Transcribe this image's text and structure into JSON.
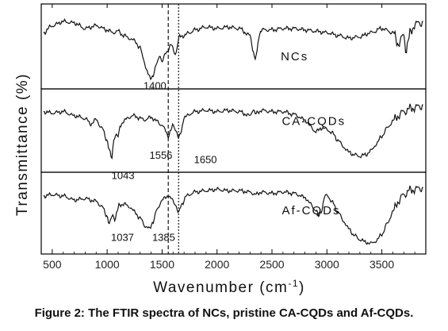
{
  "caption": "Figure 2: The FTIR spectra of NCs, pristine CA-CQDs and Af-CQDs.",
  "chart_data": {
    "type": "line",
    "title": "",
    "xlabel": "Wavenumber (cm",
    "xlabel_superscript": "-1",
    "xlabel_suffix": ")",
    "ylabel": "Transmittance (%)",
    "xlim": [
      400,
      3900
    ],
    "xticks": [
      500,
      1000,
      1500,
      2000,
      2500,
      3000,
      3500
    ],
    "xtick_labels": [
      "500",
      "1000",
      "1500",
      "2000",
      "2500",
      "3000",
      "3500"
    ],
    "stacked_panels": 3,
    "grid": false,
    "reference_lines": [
      {
        "x": 1556,
        "style": "dashed"
      },
      {
        "x": 1650,
        "style": "dotted"
      }
    ],
    "series": [
      {
        "name": "NCs",
        "panel": 0,
        "x": [
          420,
          500,
          600,
          700,
          800,
          900,
          1000,
          1050,
          1100,
          1150,
          1200,
          1250,
          1300,
          1330,
          1360,
          1380,
          1400,
          1420,
          1450,
          1480,
          1500,
          1540,
          1580,
          1620,
          1660,
          1700,
          1750,
          1800,
          1900,
          2000,
          2100,
          2200,
          2300,
          2330,
          2345,
          2360,
          2380,
          2400,
          2500,
          2600,
          2700,
          2800,
          2900,
          3000,
          3100,
          3200,
          3300,
          3400,
          3500,
          3600,
          3650,
          3700,
          3720,
          3740,
          3760,
          3800,
          3850,
          3880
        ],
        "y": [
          0.3,
          0.2,
          0.14,
          0.16,
          0.24,
          0.2,
          0.26,
          0.3,
          0.28,
          0.34,
          0.38,
          0.42,
          0.52,
          0.68,
          0.84,
          0.94,
          0.96,
          0.9,
          0.76,
          0.62,
          0.72,
          0.58,
          0.48,
          0.6,
          0.36,
          0.34,
          0.3,
          0.26,
          0.22,
          0.24,
          0.22,
          0.24,
          0.34,
          0.56,
          0.7,
          0.62,
          0.36,
          0.26,
          0.26,
          0.24,
          0.24,
          0.26,
          0.28,
          0.3,
          0.34,
          0.38,
          0.36,
          0.3,
          0.24,
          0.3,
          0.46,
          0.34,
          0.56,
          0.42,
          0.3,
          0.18,
          0.16,
          0.14
        ]
      },
      {
        "name": "CA-CQDs",
        "panel": 1,
        "x": [
          420,
          500,
          600,
          700,
          800,
          850,
          900,
          950,
          1000,
          1020,
          1043,
          1060,
          1080,
          1100,
          1120,
          1150,
          1200,
          1250,
          1300,
          1350,
          1400,
          1450,
          1500,
          1530,
          1556,
          1580,
          1600,
          1630,
          1650,
          1670,
          1700,
          1800,
          1900,
          2000,
          2100,
          2200,
          2300,
          2330,
          2350,
          2380,
          2400,
          2500,
          2600,
          2700,
          2800,
          2850,
          2900,
          2950,
          3000,
          3050,
          3100,
          3150,
          3200,
          3250,
          3300,
          3350,
          3400,
          3450,
          3500,
          3550,
          3600,
          3650,
          3700,
          3750,
          3800,
          3850,
          3880
        ],
        "y": [
          0.22,
          0.24,
          0.22,
          0.28,
          0.32,
          0.4,
          0.34,
          0.46,
          0.64,
          0.8,
          0.92,
          0.62,
          0.56,
          0.6,
          0.42,
          0.36,
          0.3,
          0.28,
          0.32,
          0.34,
          0.3,
          0.36,
          0.42,
          0.5,
          0.58,
          0.5,
          0.42,
          0.5,
          0.62,
          0.54,
          0.3,
          0.22,
          0.2,
          0.22,
          0.2,
          0.22,
          0.28,
          0.18,
          0.26,
          0.22,
          0.2,
          0.22,
          0.22,
          0.26,
          0.34,
          0.44,
          0.52,
          0.46,
          0.48,
          0.54,
          0.64,
          0.74,
          0.82,
          0.86,
          0.88,
          0.86,
          0.8,
          0.7,
          0.58,
          0.46,
          0.36,
          0.28,
          0.22,
          0.18,
          0.16,
          0.14,
          0.12
        ]
      },
      {
        "name": "Af-CQDs",
        "panel": 2,
        "x": [
          420,
          500,
          600,
          700,
          800,
          900,
          950,
          1000,
          1020,
          1037,
          1055,
          1070,
          1090,
          1110,
          1150,
          1200,
          1250,
          1300,
          1350,
          1385,
          1420,
          1450,
          1500,
          1540,
          1556,
          1580,
          1620,
          1650,
          1680,
          1720,
          1800,
          1900,
          2000,
          2100,
          2200,
          2300,
          2350,
          2400,
          2500,
          2600,
          2700,
          2800,
          2850,
          2900,
          2925,
          2950,
          2980,
          3000,
          3050,
          3100,
          3150,
          3200,
          3250,
          3300,
          3350,
          3400,
          3450,
          3500,
          3550,
          3600,
          3650,
          3700,
          3750,
          3800,
          3850,
          3880
        ],
        "y": [
          0.24,
          0.22,
          0.24,
          0.3,
          0.28,
          0.32,
          0.4,
          0.54,
          0.68,
          0.58,
          0.52,
          0.6,
          0.48,
          0.38,
          0.36,
          0.4,
          0.48,
          0.58,
          0.7,
          0.74,
          0.62,
          0.46,
          0.3,
          0.26,
          0.22,
          0.28,
          0.36,
          0.5,
          0.36,
          0.24,
          0.18,
          0.16,
          0.14,
          0.16,
          0.16,
          0.18,
          0.22,
          0.18,
          0.2,
          0.18,
          0.2,
          0.26,
          0.36,
          0.46,
          0.54,
          0.46,
          0.26,
          0.22,
          0.34,
          0.48,
          0.62,
          0.74,
          0.84,
          0.9,
          0.94,
          0.96,
          0.92,
          0.82,
          0.66,
          0.48,
          0.32,
          0.22,
          0.16,
          0.14,
          0.12,
          0.12
        ]
      }
    ],
    "series_labels": [
      {
        "text": "NCs",
        "panel": 0,
        "x": 2580,
        "y": 0.7
      },
      {
        "text": "CA-CQDs",
        "panel": 1,
        "x": 2590,
        "y": 0.42
      },
      {
        "text": "Af-CQDs",
        "panel": 2,
        "x": 2590,
        "y": 0.52
      }
    ],
    "peak_labels": [
      {
        "text": "1400",
        "panel": 0,
        "x": 1330,
        "y": 1.12
      },
      {
        "text": "1043",
        "panel": 1,
        "x": 1040,
        "y": 1.22
      },
      {
        "text": "1556",
        "panel": 1,
        "x": 1385,
        "y": 0.92
      },
      {
        "text": "1650",
        "panel": 1,
        "x": 1790,
        "y": 0.98
      },
      {
        "text": "1037",
        "panel": 2,
        "x": 1035,
        "y": 0.92
      },
      {
        "text": "1385",
        "panel": 2,
        "x": 1410,
        "y": 0.92
      }
    ]
  }
}
